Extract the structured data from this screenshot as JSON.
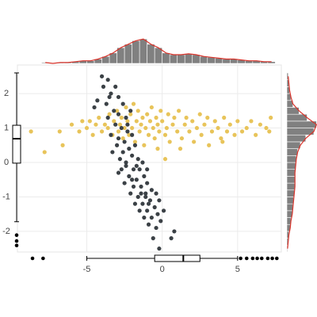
{
  "chart_data": {
    "type": "scatter",
    "xlim": [
      -9.6,
      7.9
    ],
    "ylim": [
      -2.6,
      2.83
    ],
    "xticks": [
      -5,
      0,
      5
    ],
    "yticks": [
      -2,
      -1,
      0,
      1,
      2
    ],
    "grid": true,
    "series": [
      {
        "color": "#e8c45a",
        "x": [
          -8.7,
          -7.8,
          -6.8,
          -6.6,
          -6.0,
          -5.5,
          -5.3,
          -5.0,
          -4.6,
          -4.4,
          -4.2,
          -4.0,
          -3.8,
          -3.6,
          -3.5,
          -3.3,
          -3.2,
          -3.0,
          -2.9,
          -2.8,
          -2.7,
          -2.6,
          -2.5,
          -2.4,
          -2.3,
          -2.2,
          -2.1,
          -2.0,
          -1.9,
          -1.8,
          -1.7,
          -1.6,
          -1.5,
          -1.4,
          -1.3,
          -1.2,
          -1.1,
          -1.0,
          -0.9,
          -0.8,
          -0.7,
          -0.6,
          -0.5,
          -0.4,
          -0.3,
          -0.2,
          -0.1,
          0.0,
          0.2,
          0.3,
          0.4,
          0.5,
          0.7,
          0.8,
          1.0,
          1.1,
          1.3,
          1.5,
          1.6,
          1.8,
          2.0,
          2.1,
          2.3,
          2.5,
          2.6,
          2.8,
          3.0,
          3.1,
          3.3,
          3.5,
          3.7,
          3.9,
          4.1,
          4.3,
          4.5,
          4.8,
          5.0,
          5.3,
          5.6,
          5.9,
          6.2,
          6.5,
          6.9,
          7.2,
          7.1,
          0.2,
          1.2,
          -0.3,
          4.0,
          -4.8
        ],
        "values": [
          0.9,
          0.3,
          0.9,
          0.5,
          1.1,
          0.9,
          1.2,
          1.0,
          0.8,
          1.1,
          1.3,
          0.9,
          1.1,
          1.0,
          1.4,
          0.8,
          1.2,
          1.5,
          0.9,
          1.1,
          1.3,
          0.7,
          1.0,
          1.6,
          1.2,
          0.8,
          1.4,
          1.0,
          1.7,
          0.6,
          1.2,
          1.5,
          0.9,
          1.1,
          1.3,
          0.5,
          1.0,
          1.4,
          0.8,
          1.2,
          1.6,
          1.0,
          0.7,
          1.3,
          1.1,
          0.9,
          1.5,
          1.2,
          0.8,
          1.0,
          1.4,
          0.6,
          1.1,
          1.3,
          0.9,
          1.5,
          0.7,
          1.1,
          1.3,
          0.9,
          1.2,
          0.6,
          1.0,
          1.4,
          0.8,
          1.1,
          1.3,
          0.5,
          0.9,
          1.2,
          1.0,
          0.7,
          1.3,
          0.9,
          1.1,
          0.8,
          1.2,
          0.9,
          1.0,
          1.2,
          0.8,
          1.1,
          1.0,
          1.3,
          0.9,
          0.1,
          0.4,
          0.4,
          0.6,
          1.2
        ]
      },
      {
        "color": "#3b4146",
        "x": [
          -4.0,
          -3.6,
          -3.9,
          -3.4,
          -3.1,
          -4.3,
          -3.7,
          -2.9,
          -4.5,
          -3.2,
          -2.6,
          -2.9,
          -3.6,
          -2.4,
          -2.1,
          -3.1,
          -2.7,
          -2.3,
          -3.4,
          -2.9,
          -2.0,
          -2.5,
          -3.0,
          -2.2,
          -1.8,
          -2.6,
          -2.8,
          -2.0,
          -1.6,
          -2.4,
          -1.9,
          -2.9,
          -1.5,
          -2.2,
          -1.7,
          -1.2,
          -2.5,
          -1.9,
          -1.4,
          -1.0,
          -2.1,
          -1.6,
          -1.1,
          -0.7,
          -1.8,
          -1.3,
          -0.8,
          -1.5,
          -1.0,
          -0.5,
          -1.2,
          -0.7,
          -0.3,
          -0.9,
          -0.4,
          -0.1,
          -0.6,
          0.6,
          0.8,
          -0.2,
          -3.3,
          -2.7,
          -1.3,
          -1.0,
          -0.4,
          -3.5,
          -2.3,
          -1.7,
          -2.4,
          -0.9,
          -1.4,
          -2.0,
          -1.1,
          -0.2,
          0.1
        ],
        "values": [
          2.5,
          2.4,
          2.2,
          2.0,
          2.2,
          1.8,
          1.7,
          1.9,
          1.6,
          1.5,
          1.7,
          1.4,
          1.3,
          1.3,
          1.5,
          1.1,
          1.0,
          0.9,
          0.8,
          0.7,
          0.8,
          0.6,
          0.5,
          0.4,
          0.5,
          0.3,
          0.1,
          0.2,
          0.1,
          -0.1,
          -0.2,
          -0.3,
          -0.2,
          -0.4,
          -0.5,
          -0.4,
          -0.6,
          -0.7,
          -0.7,
          -0.6,
          -0.9,
          -1.0,
          -0.9,
          -0.8,
          -1.2,
          -1.2,
          -1.1,
          -1.4,
          -1.4,
          -1.3,
          -1.6,
          -1.6,
          -1.5,
          -1.8,
          -1.9,
          -1.7,
          -2.2,
          -2.2,
          -2.0,
          -2.5,
          0.3,
          -0.2,
          0.0,
          -0.2,
          -0.9,
          1.9,
          1.1,
          -0.1,
          0.0,
          -1.2,
          -0.9,
          -0.5,
          -1.0,
          -1.1,
          -1.4
        ]
      }
    ],
    "x_histogram": {
      "color": "#808080",
      "density_color": "#d9342b",
      "bins": [
        -8,
        -7.5,
        -7,
        -6.5,
        -6,
        -5.5,
        -5,
        -4.5,
        -4,
        -3.5,
        -3,
        -2.5,
        -2,
        -1.5,
        -1,
        -0.5,
        0,
        0.5,
        1,
        1.5,
        2,
        2.5,
        3,
        3.5,
        4,
        4.5,
        5,
        5.5,
        6,
        6.5,
        7,
        7.5
      ],
      "counts": [
        1,
        0,
        1,
        1,
        2,
        3,
        3,
        5,
        8,
        12,
        18,
        22,
        26,
        28,
        22,
        18,
        12,
        10,
        10,
        11,
        10,
        8,
        7,
        6,
        5,
        5,
        4,
        3,
        3,
        2,
        2
      ]
    },
    "y_histogram": {
      "color": "#808080",
      "density_color": "#d9342b",
      "bins": [
        -2.6,
        -2.4,
        -2.2,
        -2.0,
        -1.8,
        -1.6,
        -1.4,
        -1.2,
        -1.0,
        -0.8,
        -0.6,
        -0.4,
        -0.2,
        0.0,
        0.2,
        0.4,
        0.6,
        0.8,
        1.0,
        1.2,
        1.4,
        1.6,
        1.8,
        2.0,
        2.2,
        2.4,
        2.6
      ],
      "counts": [
        1,
        2,
        3,
        5,
        6,
        8,
        9,
        10,
        11,
        12,
        12,
        12,
        13,
        14,
        16,
        20,
        28,
        40,
        44,
        30,
        18,
        9,
        6,
        4,
        3,
        2
      ]
    },
    "x_boxplot": {
      "min": -5.0,
      "q1": -0.5,
      "median": 1.4,
      "q3": 2.5,
      "max": 5.0,
      "outliers": [
        -8.6,
        -7.9,
        5.2,
        5.6,
        6.0,
        6.3,
        6.6,
        7.0,
        7.3,
        7.6
      ]
    },
    "y_boxplot": {
      "min": -1.72,
      "q1": -0.02,
      "median": 0.69,
      "q3": 1.08,
      "max": 2.6,
      "outliers": [
        -2.11,
        -2.28,
        -2.41
      ]
    }
  }
}
